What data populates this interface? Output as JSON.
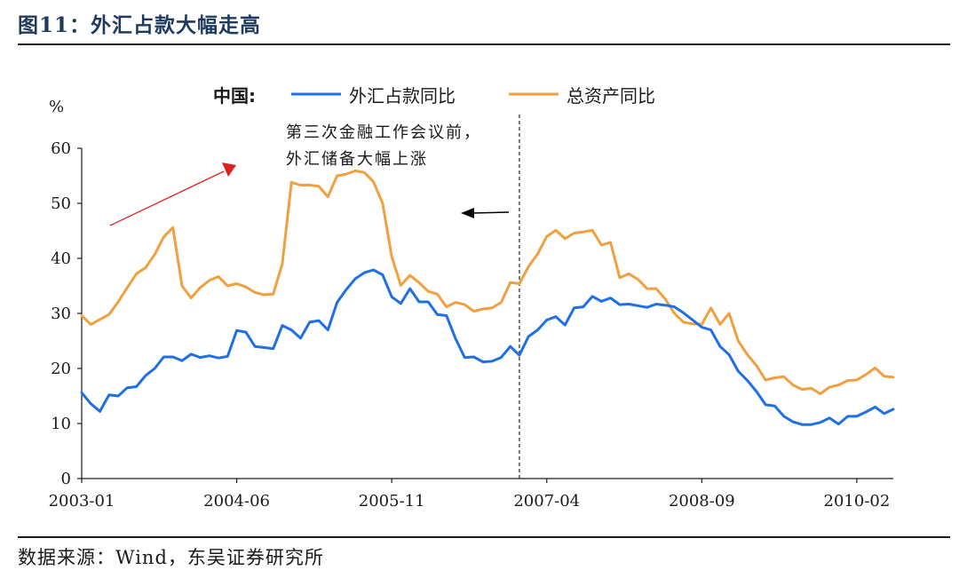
{
  "figure": {
    "title": "图11：外汇占款大幅走高",
    "source": "数据来源：Wind，东吴证券研究所"
  },
  "colors": {
    "series1": "#1f6fe5",
    "series2": "#f0a040",
    "arrow_red": "#e02020",
    "text": "#1a1a1a"
  },
  "chart_data": {
    "type": "line",
    "title": "",
    "xlabel": "",
    "ylabel": "%",
    "ylim": [
      0,
      60
    ],
    "yticks": [
      0,
      10,
      20,
      30,
      40,
      50,
      60
    ],
    "xlabels": [
      {
        "index": 0,
        "label": "2003-01"
      },
      {
        "index": 17,
        "label": "2004-06"
      },
      {
        "index": 34,
        "label": "2005-11"
      },
      {
        "index": 51,
        "label": "2007-04"
      },
      {
        "index": 68,
        "label": "2008-09"
      },
      {
        "index": 85,
        "label": "2010-02"
      }
    ],
    "legend_title": "中国:",
    "legend_position": "top",
    "series": [
      {
        "name": "外汇占款同比",
        "values": [
          15.6,
          13.6,
          12.2,
          15.2,
          15.0,
          16.5,
          16.7,
          18.7,
          20.0,
          22.1,
          22.1,
          21.4,
          22.6,
          22.0,
          22.3,
          21.9,
          22.2,
          26.9,
          26.6,
          24.0,
          23.8,
          23.6,
          27.8,
          27.0,
          25.5,
          28.4,
          28.7,
          27.0,
          32.0,
          34.3,
          36.3,
          37.4,
          37.9,
          37.0,
          33.0,
          31.8,
          34.5,
          32.1,
          32.1,
          29.8,
          29.6,
          25.4,
          22.0,
          22.1,
          21.2,
          21.3,
          22.0,
          24.0,
          22.4,
          25.8,
          27.0,
          28.8,
          29.4,
          27.9,
          31.0,
          31.2,
          33.1,
          32.2,
          32.8,
          31.6,
          31.7,
          31.4,
          31.1,
          31.7,
          31.5,
          31.2,
          30.1,
          28.8,
          27.5,
          27.0,
          24.0,
          22.5,
          19.5,
          17.8,
          15.8,
          13.4,
          13.2,
          11.3,
          10.3,
          9.8,
          9.8,
          10.2,
          11.0,
          9.9,
          11.3,
          11.3,
          12.1,
          13.0,
          11.8,
          12.6
        ]
      },
      {
        "name": "总资产同比",
        "values": [
          29.6,
          28.0,
          28.9,
          29.8,
          32.1,
          34.7,
          37.2,
          38.3,
          40.7,
          43.9,
          45.6,
          35.0,
          32.8,
          34.7,
          36.0,
          36.7,
          35.0,
          35.4,
          34.8,
          33.8,
          33.4,
          33.5,
          39.0,
          53.8,
          53.3,
          53.3,
          53.1,
          51.2,
          55.0,
          55.3,
          55.9,
          55.6,
          53.9,
          50.0,
          40.3,
          35.1,
          36.9,
          35.6,
          34.0,
          33.5,
          31.2,
          32.0,
          31.6,
          30.4,
          30.8,
          31.0,
          32.0,
          35.6,
          35.4,
          38.5,
          40.8,
          44.0,
          45.1,
          43.6,
          44.6,
          44.8,
          45.1,
          42.4,
          42.9,
          36.5,
          37.2,
          36.2,
          34.5,
          34.5,
          32.6,
          30.0,
          28.4,
          28.1,
          28.0,
          31.0,
          28.0,
          30.0,
          25.0,
          22.5,
          20.5,
          17.9,
          18.3,
          18.5,
          17.0,
          16.2,
          16.4,
          15.4,
          16.6,
          17.0,
          17.8,
          17.9,
          18.9,
          20.1,
          18.6,
          18.4
        ]
      }
    ],
    "annotation": {
      "lines": [
        "第三次金融工作会议前，",
        "外汇储备大幅上涨"
      ],
      "divider_index": 48
    }
  }
}
